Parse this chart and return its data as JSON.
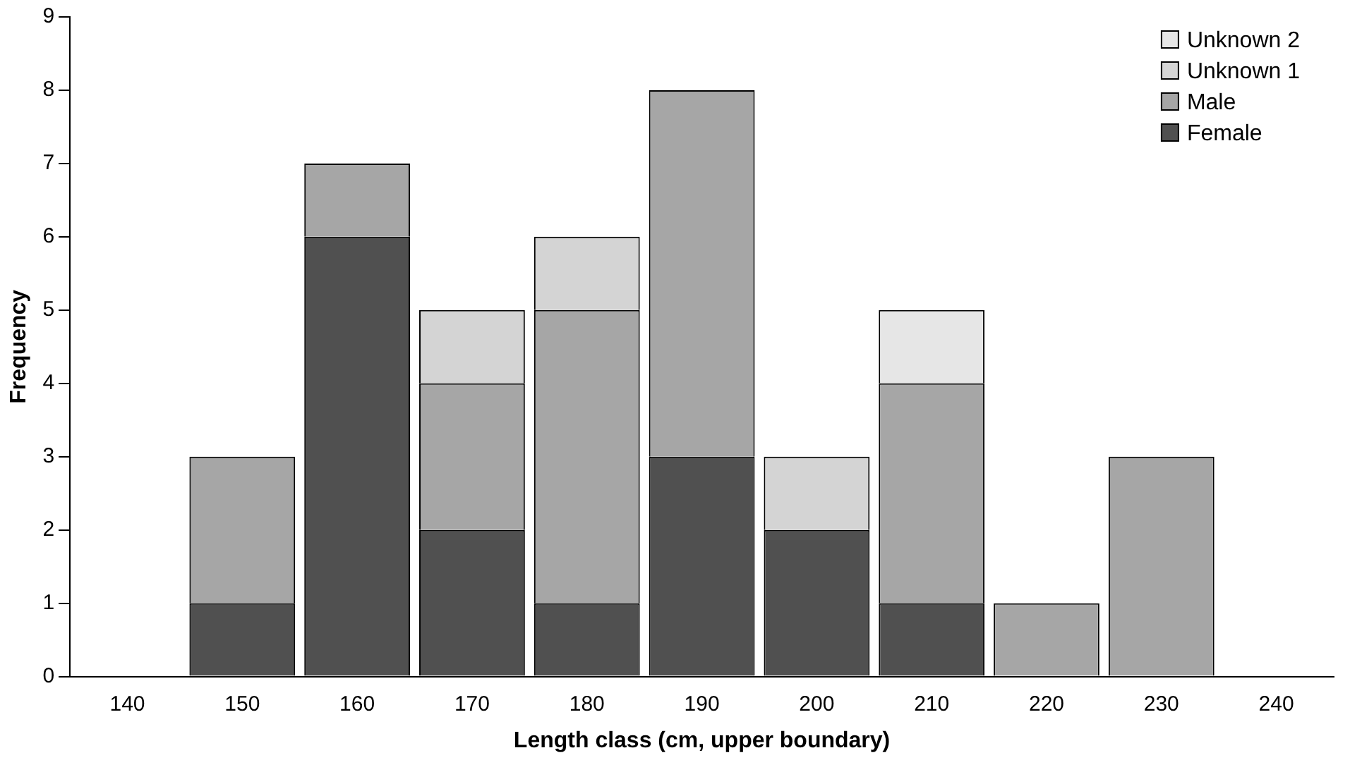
{
  "chart_data": {
    "type": "bar",
    "stacked": true,
    "xlabel": "Length class (cm, upper boundary)",
    "ylabel": "Frequency",
    "categories": [
      "140",
      "150",
      "160",
      "170",
      "180",
      "190",
      "200",
      "210",
      "220",
      "230",
      "240"
    ],
    "series": [
      {
        "name": "Female",
        "color": "#505050",
        "values": [
          0,
          1,
          6,
          2,
          1,
          3,
          2,
          1,
          0,
          0,
          0
        ]
      },
      {
        "name": "Male",
        "color": "#a6a6a6",
        "values": [
          0,
          2,
          1,
          2,
          4,
          5,
          0,
          3,
          1,
          3,
          0
        ]
      },
      {
        "name": "Unknown 1",
        "color": "#d4d4d4",
        "values": [
          0,
          0,
          0,
          1,
          1,
          0,
          1,
          0,
          0,
          0,
          0
        ]
      },
      {
        "name": "Unknown 2",
        "color": "#e6e6e6",
        "values": [
          0,
          0,
          0,
          0,
          0,
          0,
          0,
          1,
          0,
          0,
          0
        ]
      }
    ],
    "ylim": [
      0,
      9
    ],
    "yticks": [
      0,
      1,
      2,
      3,
      4,
      5,
      6,
      7,
      8,
      9
    ],
    "grid": false,
    "legend": "top right"
  }
}
